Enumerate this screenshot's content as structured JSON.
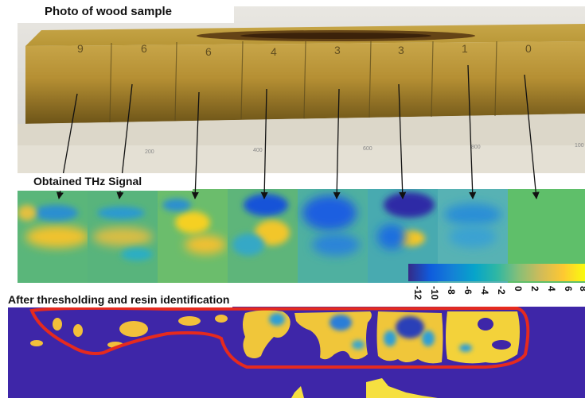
{
  "photo_panel": {
    "title": "Photo of wood sample",
    "block_markings": [
      "9",
      "6",
      "6",
      "4",
      "3",
      "3",
      "1",
      "0"
    ],
    "ruler_ticks": [
      "200",
      "400",
      "600",
      "800",
      "100"
    ]
  },
  "thz_panel": {
    "title": "Obtained THz Signal"
  },
  "colorbar": {
    "ticks": [
      "-12",
      "-10",
      "-8",
      "-6",
      "-4",
      "-2",
      "0",
      "2",
      "4",
      "6",
      "8"
    ],
    "colors": [
      "#352a87",
      "#0f5cdd",
      "#1481d6",
      "#06a4ca",
      "#2eb7a4",
      "#87bf77",
      "#d1bb59",
      "#fec832",
      "#f9fb0e"
    ]
  },
  "threshold_panel": {
    "title": "After thresholding and resin identification"
  },
  "colors": {
    "background_dark": "#3e26a8",
    "outline": "#e62a1e",
    "thz_green": "#5fbf6a"
  }
}
